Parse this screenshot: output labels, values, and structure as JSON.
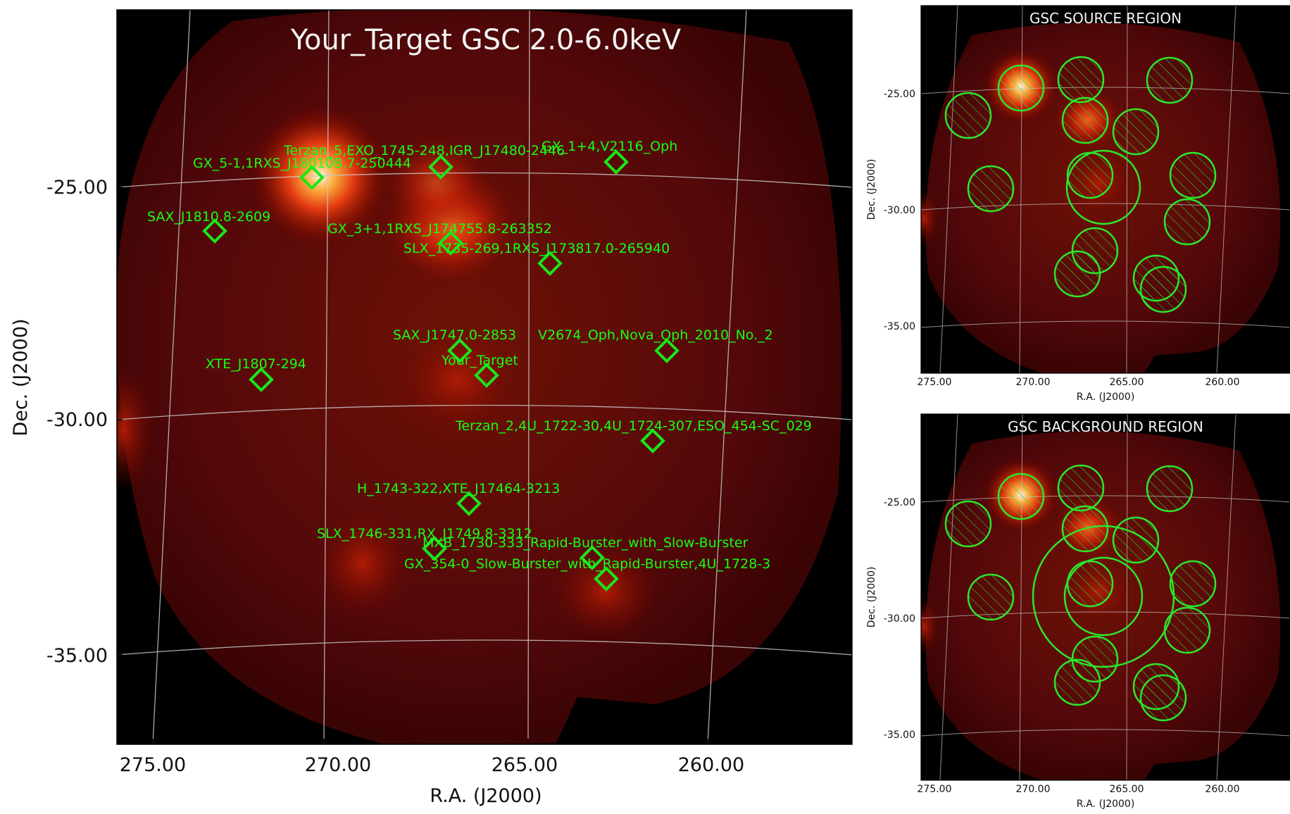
{
  "main_panel": {
    "title": "Your_Target GSC 2.0-6.0keV",
    "xlabel": "R.A. (J2000)",
    "ylabel": "Dec. (J2000)",
    "x_ticks": [
      "275.00",
      "270.00",
      "265.00",
      "260.00"
    ],
    "y_ticks": [
      "-25.00",
      "-30.00",
      "-35.00"
    ],
    "sources": [
      {
        "label": "GX_5-1,1RXS_J180108.7-250444"
      },
      {
        "label": "Terzan_5,EXO_1745-248,IGR_J17480-2446"
      },
      {
        "label": "GX_1+4,V2116_Oph"
      },
      {
        "label": "SAX_J1810.8-2609"
      },
      {
        "label": "GX_3+1,1RXS_J174755.8-263352"
      },
      {
        "label": "SLX_1735-269,1RXS_J173817.0-265940"
      },
      {
        "label": "SAX_J1747.0-2853"
      },
      {
        "label": "V2674_Oph,Nova_Oph_2010_No._2"
      },
      {
        "label": "Your_Target"
      },
      {
        "label": "XTE_J1807-294"
      },
      {
        "label": "Terzan_2,4U_1722-30,4U_1724-307,ESO_454-SC_029"
      },
      {
        "label": "H_1743-322,XTE_J17464-3213"
      },
      {
        "label": "SLX_1746-331,RX_J1749.8-3312"
      },
      {
        "label": "MXB_1730-333_Rapid-Burster_with_Slow-Burster"
      },
      {
        "label": "GX_354-0_Slow-Burster_with_Rapid-Burster,4U_1728-3"
      }
    ]
  },
  "source_panel": {
    "title": "GSC SOURCE REGION",
    "xlabel": "R.A. (J2000)",
    "ylabel": "Dec. (J2000)",
    "x_ticks": [
      "275.00",
      "270.00",
      "265.00",
      "260.00"
    ],
    "y_ticks": [
      "-25.00",
      "-30.00",
      "-35.00"
    ]
  },
  "background_panel": {
    "title": "GSC BACKGROUND REGION",
    "xlabel": "R.A. (J2000)",
    "ylabel": "Dec. (J2000)",
    "x_ticks": [
      "275.00",
      "270.00",
      "265.00",
      "260.00"
    ],
    "y_ticks": [
      "-25.00",
      "-30.00",
      "-35.00"
    ]
  },
  "colors": {
    "marker": "#19e619",
    "label": "#16ff16",
    "grid": "#c8c8c8",
    "sky": "#2a0000"
  }
}
